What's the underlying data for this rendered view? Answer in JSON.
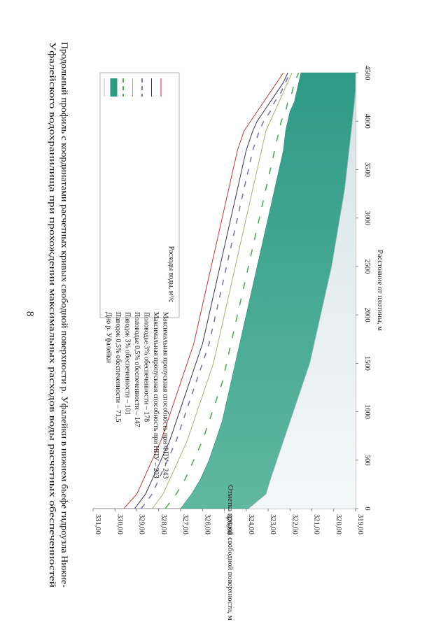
{
  "page_number": "8",
  "title_lines": [
    "Продольный профиль с координатами расчетных кривых свободной поверхности р. Уфалейки в нижнем бьефе гидроузла Нижне-",
    "Уфалейского водохранилища при прохождении максимальных расходов воды расчетных обеспеченностей"
  ],
  "chart_data": {
    "type": "area",
    "orientation": "rotated-90-clockwise",
    "xlabel": "Расстояние от плотины, м",
    "ylabel": "Отметка кривой свободной поверхности, м",
    "xlim": [
      0,
      4500
    ],
    "ylim": [
      319,
      331
    ],
    "x_ticks": [
      "0",
      "500",
      "1000",
      "1500",
      "2000",
      "2500",
      "3000",
      "3500",
      "4000",
      "4500"
    ],
    "y_ticks": [
      "319,00",
      "320,00",
      "321,00",
      "322,00",
      "323,00",
      "324,00",
      "325,00",
      "326,00",
      "327,00",
      "328,00",
      "329,00",
      "330,00",
      "331,00"
    ],
    "legend_title": "Расходы воды, м³/с",
    "legend_placement": "top-left",
    "grid": false,
    "x": [
      0,
      150,
      300,
      500,
      700,
      900,
      1100,
      1300,
      1500,
      1700,
      1900,
      2100,
      2300,
      2500,
      2700,
      2900,
      3100,
      3300,
      3500,
      3700,
      3900,
      4000,
      4100,
      4200,
      4300,
      4400,
      4500
    ],
    "series": [
      {
        "name": "Максимальная пропускная способность при ФПУ – 243",
        "color": "#c0392b",
        "style": "solid",
        "values": [
          329.6,
          329.0,
          328.7,
          328.3,
          327.9,
          327.6,
          327.3,
          327.0,
          326.7,
          326.4,
          326.2,
          326.0,
          325.8,
          325.6,
          325.4,
          325.2,
          325.0,
          324.8,
          324.6,
          324.4,
          324.1,
          323.8,
          323.5,
          323.2,
          322.9,
          322.6,
          322.3
        ]
      },
      {
        "name": "Максимальная пропускная способность при НПУ – 203",
        "color": "#34305a",
        "style": "solid",
        "values": [
          329.1,
          328.6,
          328.3,
          327.9,
          327.5,
          327.2,
          326.9,
          326.6,
          326.3,
          326.0,
          325.8,
          325.6,
          325.4,
          325.2,
          325.0,
          324.8,
          324.6,
          324.4,
          324.2,
          324.0,
          323.7,
          323.5,
          323.2,
          322.9,
          322.6,
          322.3,
          322.1
        ]
      },
      {
        "name": "Половодье 3% обеспеченности – 178",
        "color": "#7b78b8",
        "style": "dashed",
        "values": [
          328.8,
          328.3,
          328.0,
          327.6,
          327.2,
          326.9,
          326.6,
          326.3,
          326.0,
          325.7,
          325.5,
          325.3,
          325.1,
          324.9,
          324.7,
          324.5,
          324.3,
          324.1,
          323.9,
          323.7,
          323.4,
          323.2,
          322.9,
          322.7,
          322.4,
          322.2,
          322.0
        ]
      },
      {
        "name": "Половодье 0,5% обеспеченности – 147",
        "color": "#a8b26a",
        "style": "solid",
        "values": [
          328.3,
          327.8,
          327.5,
          327.1,
          326.7,
          326.4,
          326.1,
          325.8,
          325.5,
          325.3,
          325.1,
          324.9,
          324.7,
          324.5,
          324.3,
          324.1,
          323.9,
          323.7,
          323.5,
          323.3,
          323.1,
          322.9,
          322.7,
          322.5,
          322.3,
          322.1,
          321.9
        ]
      },
      {
        "name": "Паводок 3% обеспеченности – 101",
        "color": "#4caf50",
        "style": "dashed",
        "values": [
          327.7,
          327.2,
          326.8,
          326.4,
          326.0,
          325.7,
          325.4,
          325.1,
          324.9,
          324.7,
          324.5,
          324.3,
          324.1,
          323.9,
          323.7,
          323.5,
          323.3,
          323.1,
          322.9,
          322.7,
          322.5,
          322.4,
          322.2,
          322.1,
          321.9,
          321.8,
          321.6
        ]
      },
      {
        "name": "Паводок 0,5% обеспеченности – 71,5",
        "color": "#2e9a86",
        "style": "filled",
        "values": [
          327.0,
          326.5,
          326.1,
          325.7,
          325.4,
          325.1,
          324.9,
          324.7,
          324.5,
          324.3,
          324.1,
          323.9,
          323.7,
          323.5,
          323.3,
          323.1,
          322.9,
          322.7,
          322.5,
          322.3,
          322.2,
          322.1,
          322.0,
          321.8,
          321.7,
          321.6,
          321.5
        ]
      },
      {
        "name": "Дно р. Уфалейки",
        "color": "#cfd8dc",
        "style": "line",
        "values": [
          323.9,
          323.1,
          322.9,
          322.6,
          322.3,
          322.0,
          321.7,
          321.4,
          321.1,
          320.9,
          320.7,
          320.5,
          320.3,
          320.1,
          319.95,
          319.8,
          319.65,
          319.5,
          319.4,
          319.3,
          319.2,
          319.15,
          319.1,
          319.05,
          319.02,
          319.01,
          319.0
        ]
      }
    ]
  }
}
